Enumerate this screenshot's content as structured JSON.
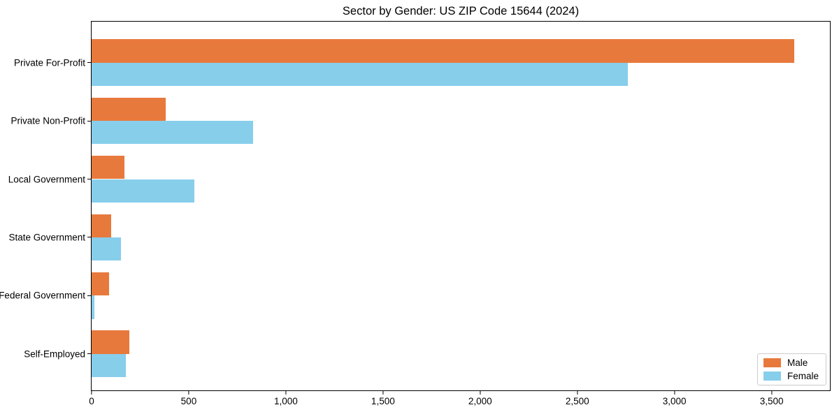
{
  "title": "Sector by Gender: US ZIP Code 15644 (2024)",
  "chart_data": {
    "type": "bar",
    "orientation": "horizontal",
    "title": "Sector by Gender: US ZIP Code 15644 (2024)",
    "categories": [
      "Private For-Profit",
      "Private Non-Profit",
      "Local Government",
      "State Government",
      "Federal Government",
      "Self-Employed"
    ],
    "series": [
      {
        "name": "Male",
        "color": "#e8793c",
        "values": [
          3615,
          380,
          170,
          100,
          90,
          195
        ]
      },
      {
        "name": "Female",
        "color": "#87ceeb",
        "values": [
          2760,
          830,
          530,
          150,
          15,
          175
        ]
      }
    ],
    "xlabel": "",
    "ylabel": "",
    "xlim": [
      0,
      3800
    ],
    "xticks": [
      0,
      500,
      1000,
      1500,
      2000,
      2500,
      3000,
      3500
    ],
    "xtick_labels": [
      "0",
      "500",
      "1,000",
      "1,500",
      "2,000",
      "2,500",
      "3,000",
      "3,500"
    ],
    "grid": false,
    "legend_position": "lower right",
    "legend_entries": [
      "Male",
      "Female"
    ]
  }
}
